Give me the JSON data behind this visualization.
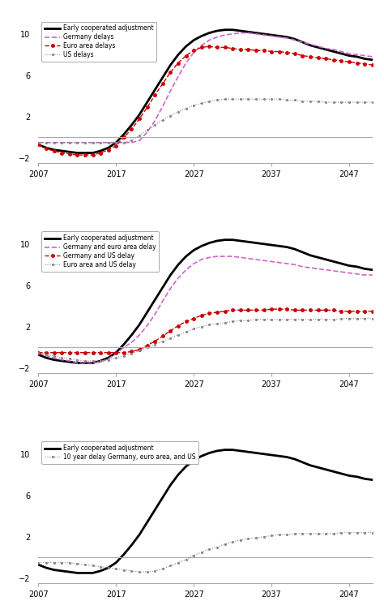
{
  "years": [
    2007,
    2008,
    2009,
    2010,
    2011,
    2012,
    2013,
    2014,
    2015,
    2016,
    2017,
    2018,
    2019,
    2020,
    2021,
    2022,
    2023,
    2024,
    2025,
    2026,
    2027,
    2028,
    2029,
    2030,
    2031,
    2032,
    2033,
    2034,
    2035,
    2036,
    2037,
    2038,
    2039,
    2040,
    2041,
    2042,
    2043,
    2044,
    2045,
    2046,
    2047,
    2048,
    2049,
    2050
  ],
  "panel1": {
    "early": [
      -0.7,
      -1.0,
      -1.2,
      -1.3,
      -1.4,
      -1.5,
      -1.5,
      -1.5,
      -1.3,
      -1.0,
      -0.5,
      0.3,
      1.2,
      2.2,
      3.4,
      4.6,
      5.8,
      7.0,
      8.0,
      8.8,
      9.4,
      9.8,
      10.1,
      10.3,
      10.4,
      10.4,
      10.3,
      10.2,
      10.1,
      10.0,
      9.9,
      9.8,
      9.7,
      9.5,
      9.2,
      8.9,
      8.7,
      8.5,
      8.3,
      8.1,
      7.9,
      7.8,
      7.6,
      7.5
    ],
    "germany_delays": [
      -0.5,
      -0.5,
      -0.5,
      -0.5,
      -0.5,
      -0.5,
      -0.5,
      -0.5,
      -0.5,
      -0.5,
      -0.5,
      -0.5,
      -0.5,
      -0.3,
      0.5,
      1.6,
      3.0,
      4.5,
      5.9,
      7.2,
      8.2,
      8.9,
      9.4,
      9.7,
      9.9,
      10.0,
      10.1,
      10.1,
      10.0,
      9.9,
      9.8,
      9.7,
      9.6,
      9.4,
      9.2,
      9.0,
      8.8,
      8.6,
      8.5,
      8.3,
      8.1,
      8.0,
      7.9,
      7.8
    ],
    "euro_area_delays": [
      -0.7,
      -1.1,
      -1.3,
      -1.5,
      -1.6,
      -1.7,
      -1.7,
      -1.7,
      -1.5,
      -1.2,
      -0.8,
      0.0,
      0.8,
      1.8,
      2.9,
      4.1,
      5.2,
      6.3,
      7.2,
      7.9,
      8.4,
      8.7,
      8.8,
      8.7,
      8.7,
      8.6,
      8.5,
      8.5,
      8.4,
      8.4,
      8.3,
      8.3,
      8.2,
      8.1,
      7.9,
      7.8,
      7.7,
      7.6,
      7.5,
      7.4,
      7.3,
      7.2,
      7.1,
      7.0
    ],
    "us_delays": [
      -0.5,
      -0.5,
      -0.5,
      -0.5,
      -0.5,
      -0.5,
      -0.5,
      -0.5,
      -0.5,
      -0.5,
      -0.5,
      -0.5,
      -0.3,
      0.2,
      0.7,
      1.2,
      1.7,
      2.1,
      2.5,
      2.8,
      3.1,
      3.3,
      3.5,
      3.6,
      3.7,
      3.7,
      3.7,
      3.7,
      3.7,
      3.7,
      3.7,
      3.7,
      3.6,
      3.6,
      3.5,
      3.5,
      3.5,
      3.4,
      3.4,
      3.4,
      3.4,
      3.4,
      3.4,
      3.4
    ],
    "legend": [
      "Early cooperated adjustment",
      "Germany delays",
      "Euro area delays",
      "US delays"
    ]
  },
  "panel2": {
    "early": [
      -0.7,
      -1.0,
      -1.2,
      -1.3,
      -1.4,
      -1.5,
      -1.5,
      -1.5,
      -1.3,
      -1.0,
      -0.5,
      0.3,
      1.2,
      2.2,
      3.4,
      4.6,
      5.8,
      7.0,
      8.0,
      8.8,
      9.4,
      9.8,
      10.1,
      10.3,
      10.4,
      10.4,
      10.3,
      10.2,
      10.1,
      10.0,
      9.9,
      9.8,
      9.7,
      9.5,
      9.2,
      8.9,
      8.7,
      8.5,
      8.3,
      8.1,
      7.9,
      7.8,
      7.6,
      7.5
    ],
    "germany_euro_delay": [
      -0.5,
      -0.8,
      -1.0,
      -1.2,
      -1.3,
      -1.5,
      -1.5,
      -1.5,
      -1.4,
      -1.1,
      -0.6,
      0.0,
      0.5,
      1.2,
      2.1,
      3.2,
      4.5,
      5.7,
      6.7,
      7.5,
      8.1,
      8.5,
      8.7,
      8.8,
      8.8,
      8.8,
      8.7,
      8.6,
      8.5,
      8.4,
      8.3,
      8.2,
      8.1,
      8.0,
      7.8,
      7.7,
      7.6,
      7.5,
      7.4,
      7.3,
      7.2,
      7.1,
      7.0,
      7.0
    ],
    "germany_us_delay": [
      -0.5,
      -0.5,
      -0.5,
      -0.5,
      -0.5,
      -0.5,
      -0.5,
      -0.5,
      -0.5,
      -0.5,
      -0.5,
      -0.5,
      -0.4,
      -0.2,
      0.2,
      0.6,
      1.1,
      1.6,
      2.1,
      2.5,
      2.8,
      3.1,
      3.3,
      3.4,
      3.5,
      3.6,
      3.6,
      3.6,
      3.6,
      3.6,
      3.7,
      3.7,
      3.7,
      3.6,
      3.6,
      3.6,
      3.6,
      3.6,
      3.6,
      3.5,
      3.5,
      3.5,
      3.5,
      3.5
    ],
    "euro_us_delay": [
      -0.5,
      -0.7,
      -0.8,
      -1.0,
      -1.1,
      -1.2,
      -1.3,
      -1.3,
      -1.3,
      -1.2,
      -1.0,
      -0.8,
      -0.6,
      -0.3,
      0.0,
      0.3,
      0.6,
      0.9,
      1.2,
      1.5,
      1.8,
      2.0,
      2.2,
      2.3,
      2.4,
      2.5,
      2.6,
      2.6,
      2.7,
      2.7,
      2.7,
      2.7,
      2.7,
      2.7,
      2.7,
      2.7,
      2.7,
      2.7,
      2.7,
      2.8,
      2.8,
      2.8,
      2.8,
      2.8
    ],
    "legend": [
      "Early cooperated adjustment",
      "Germany and euro area delay",
      "Germany and US delay",
      "Euro area and US delay"
    ]
  },
  "panel3": {
    "early": [
      -0.7,
      -1.0,
      -1.2,
      -1.3,
      -1.4,
      -1.5,
      -1.5,
      -1.5,
      -1.3,
      -1.0,
      -0.5,
      0.3,
      1.2,
      2.2,
      3.4,
      4.6,
      5.8,
      7.0,
      8.0,
      8.8,
      9.4,
      9.8,
      10.1,
      10.3,
      10.4,
      10.4,
      10.3,
      10.2,
      10.1,
      10.0,
      9.9,
      9.8,
      9.7,
      9.5,
      9.2,
      8.9,
      8.7,
      8.5,
      8.3,
      8.1,
      7.9,
      7.8,
      7.6,
      7.5
    ],
    "ten_year_delay": [
      -0.5,
      -0.5,
      -0.5,
      -0.5,
      -0.5,
      -0.6,
      -0.7,
      -0.8,
      -0.9,
      -1.0,
      -1.1,
      -1.2,
      -1.3,
      -1.4,
      -1.4,
      -1.3,
      -1.1,
      -0.8,
      -0.5,
      -0.2,
      0.2,
      0.5,
      0.8,
      1.0,
      1.3,
      1.5,
      1.7,
      1.8,
      1.9,
      2.0,
      2.1,
      2.2,
      2.2,
      2.3,
      2.3,
      2.3,
      2.3,
      2.3,
      2.3,
      2.4,
      2.4,
      2.4,
      2.4,
      2.4
    ],
    "legend": [
      "Early cooperated adjustment",
      "10 year delay Germany, euro area, and US"
    ]
  },
  "xlim": [
    2007,
    2050
  ],
  "ylim": [
    -2.5,
    11.5
  ],
  "yticks": [
    -2,
    2,
    6,
    10
  ],
  "xticks": [
    2007,
    2017,
    2027,
    2037,
    2047
  ],
  "colors": {
    "early": "#000000",
    "germany_delays": "#cc66cc",
    "euro_area_delays": "#cc0000",
    "us_delays": "#888888",
    "germany_euro_delay": "#cc66cc",
    "germany_us_delay": "#cc0000",
    "euro_us_delay": "#888888",
    "ten_year_delay": "#888888"
  }
}
